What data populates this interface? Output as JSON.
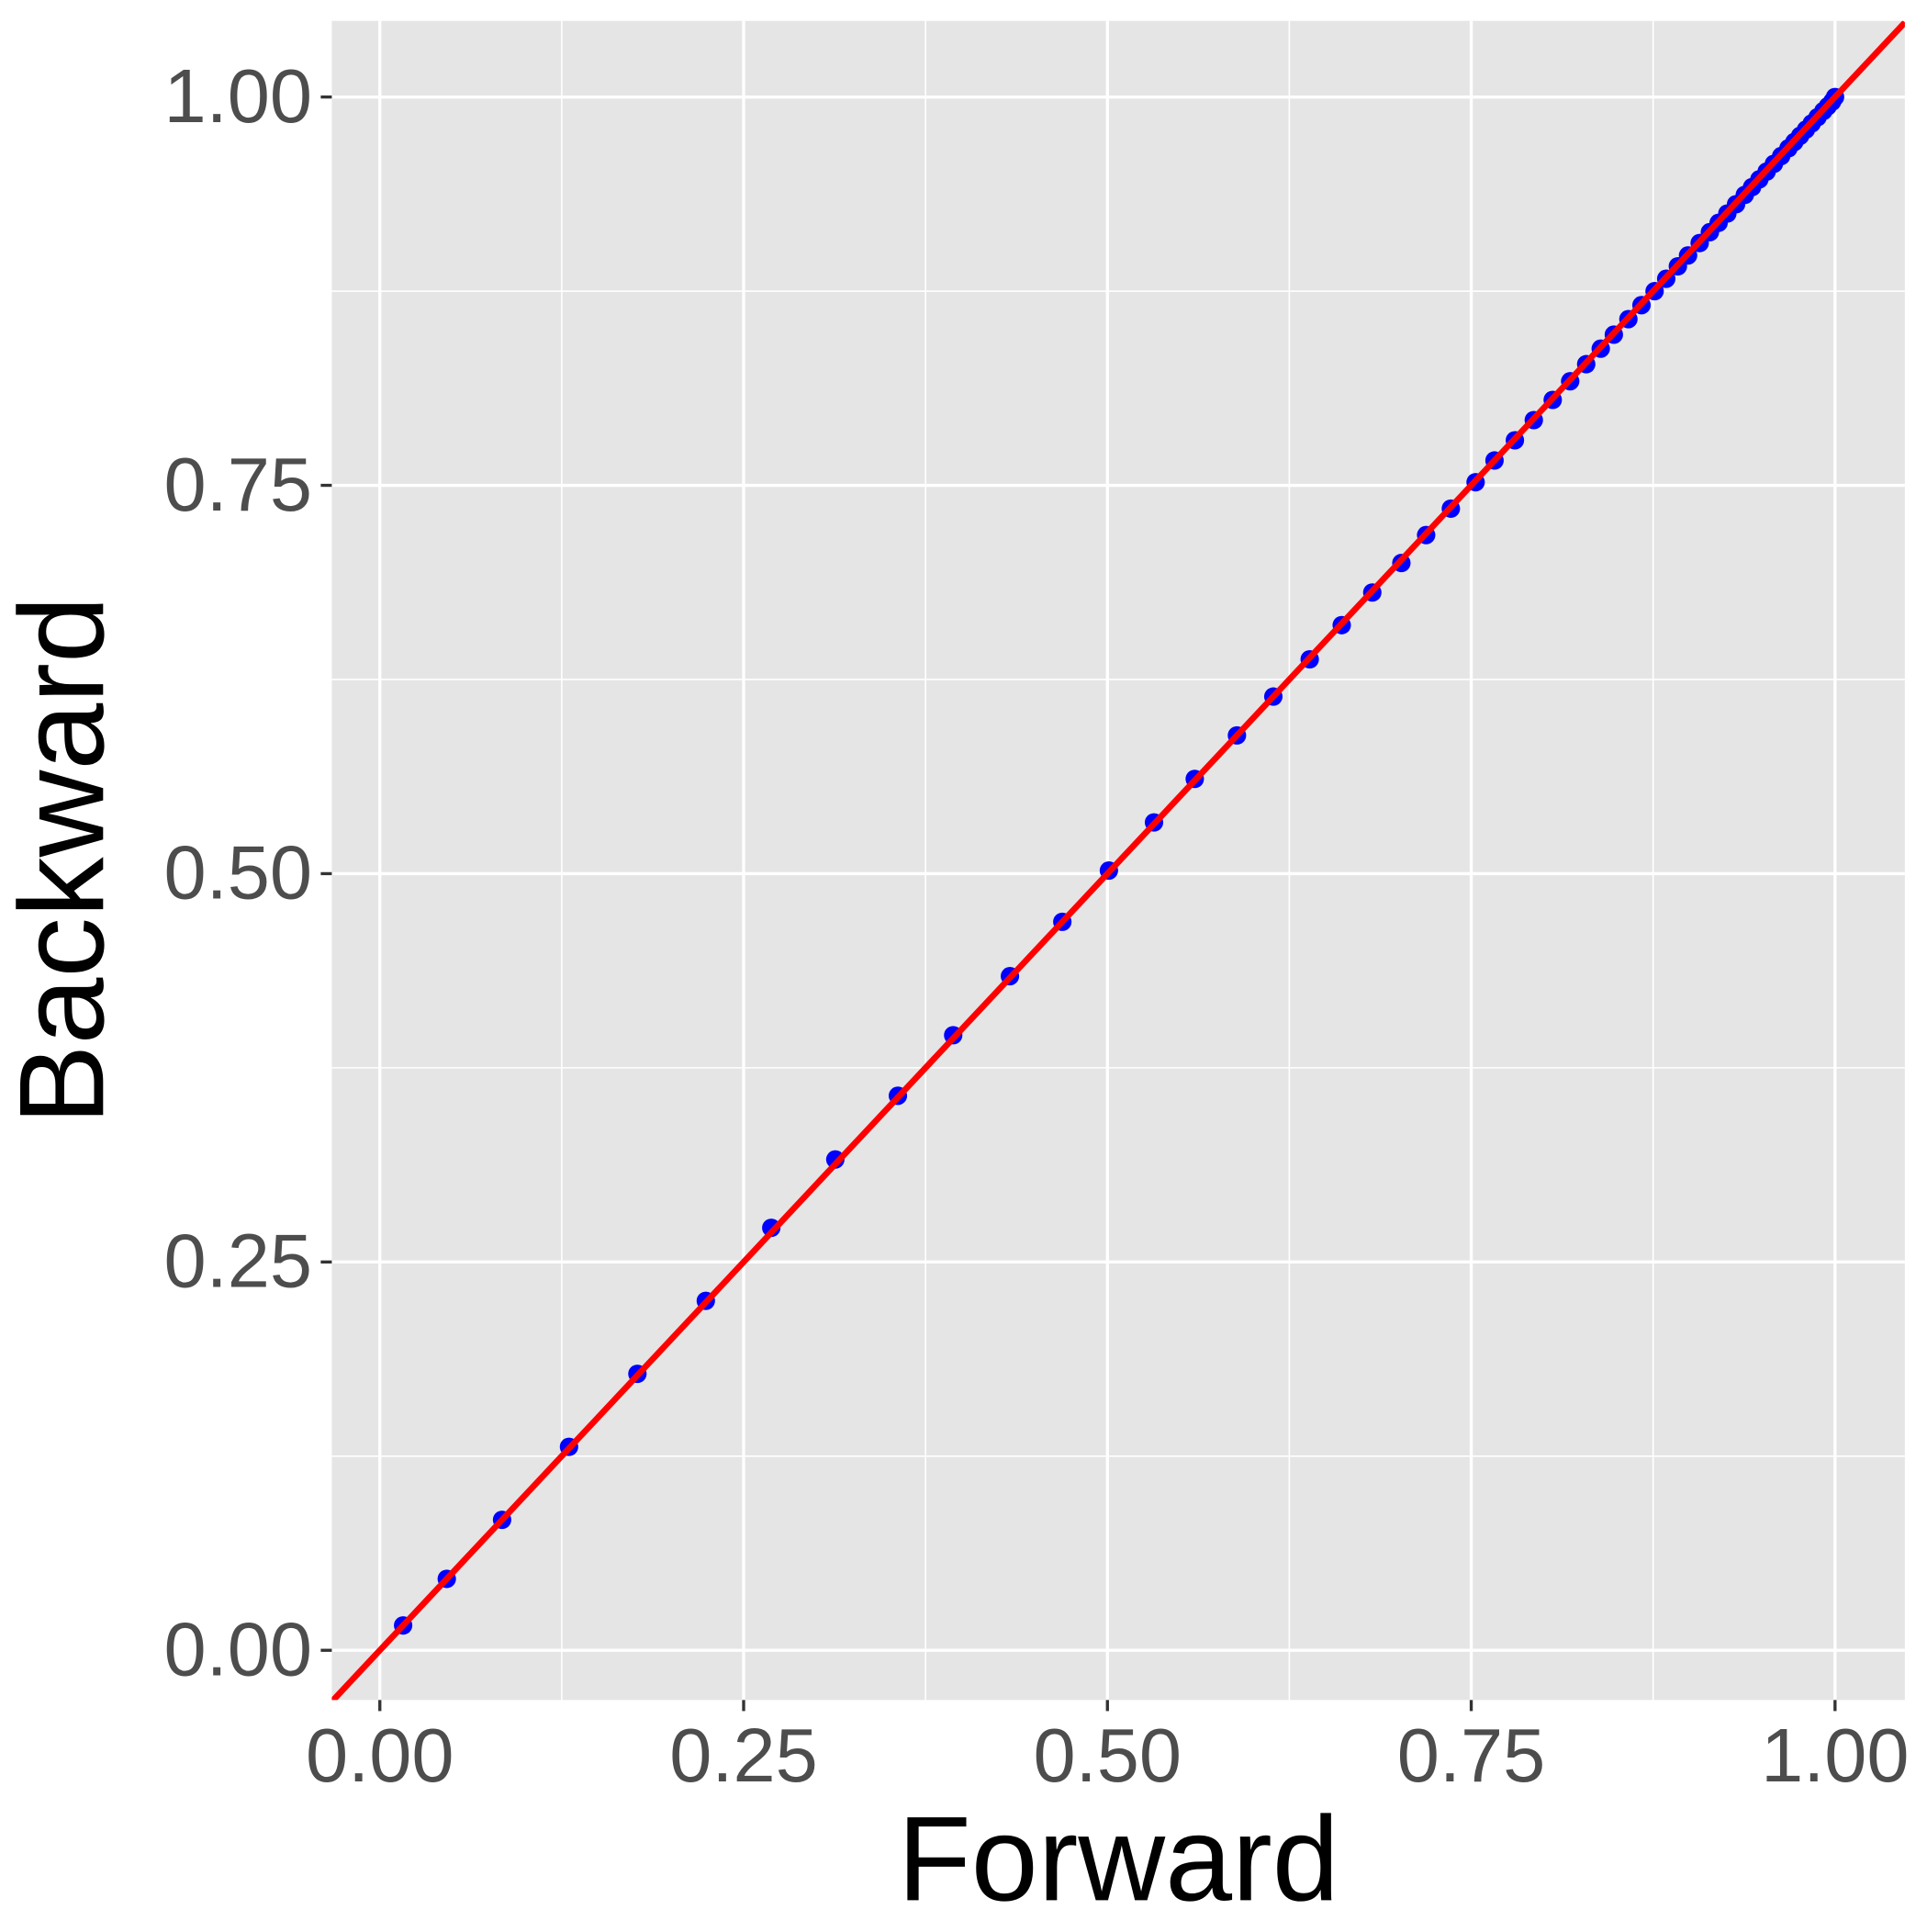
{
  "chart_data": {
    "type": "scatter",
    "x_label": "Forward",
    "y_label": "Backward",
    "x": [
      0.016,
      0.046,
      0.084,
      0.13,
      0.177,
      0.224,
      0.269,
      0.313,
      0.356,
      0.394,
      0.433,
      0.469,
      0.501,
      0.532,
      0.56,
      0.589,
      0.614,
      0.639,
      0.661,
      0.682,
      0.702,
      0.719,
      0.736,
      0.753,
      0.766,
      0.78,
      0.793,
      0.806,
      0.818,
      0.829,
      0.839,
      0.848,
      0.858,
      0.867,
      0.876,
      0.884,
      0.892,
      0.899,
      0.907,
      0.914,
      0.92,
      0.926,
      0.932,
      0.938,
      0.943,
      0.948,
      0.953,
      0.958,
      0.963,
      0.968,
      0.972,
      0.976,
      0.98,
      0.984,
      0.988,
      0.992,
      0.995,
      0.998,
      1.0
    ],
    "series": [
      {
        "color": "#0000ff",
        "values": [
          0.016,
          0.046,
          0.084,
          0.131,
          0.178,
          0.225,
          0.272,
          0.316,
          0.357,
          0.396,
          0.434,
          0.469,
          0.502,
          0.533,
          0.561,
          0.589,
          0.614,
          0.638,
          0.66,
          0.681,
          0.7,
          0.718,
          0.735,
          0.752,
          0.766,
          0.779,
          0.792,
          0.805,
          0.817,
          0.828,
          0.838,
          0.847,
          0.857,
          0.866,
          0.875,
          0.883,
          0.891,
          0.898,
          0.906,
          0.913,
          0.919,
          0.925,
          0.931,
          0.937,
          0.942,
          0.947,
          0.952,
          0.957,
          0.962,
          0.967,
          0.971,
          0.975,
          0.979,
          0.983,
          0.987,
          0.991,
          0.994,
          0.997,
          1.0
        ]
      }
    ],
    "reference_line": {
      "slope": 1,
      "intercept": 0,
      "color": "#ff0000"
    },
    "xlim": [
      -0.033,
      1.048
    ],
    "ylim": [
      -0.032,
      1.049
    ],
    "xticks": [
      {
        "value": 0,
        "label": "0.00"
      },
      {
        "value": 0.25,
        "label": "0.25"
      },
      {
        "value": 0.5,
        "label": "0.50"
      },
      {
        "value": 0.75,
        "label": "0.75"
      },
      {
        "value": 1,
        "label": "1.00"
      }
    ],
    "yticks": [
      {
        "value": 0,
        "label": "0.00"
      },
      {
        "value": 0.25,
        "label": "0.25"
      },
      {
        "value": 0.5,
        "label": "0.50"
      },
      {
        "value": 0.75,
        "label": "0.75"
      },
      {
        "value": 1,
        "label": "1.00"
      }
    ],
    "x_minor_ticks": [
      0.125,
      0.375,
      0.625,
      0.875
    ],
    "y_minor_ticks": [
      0.125,
      0.375,
      0.625,
      0.875
    ],
    "grid": true
  }
}
